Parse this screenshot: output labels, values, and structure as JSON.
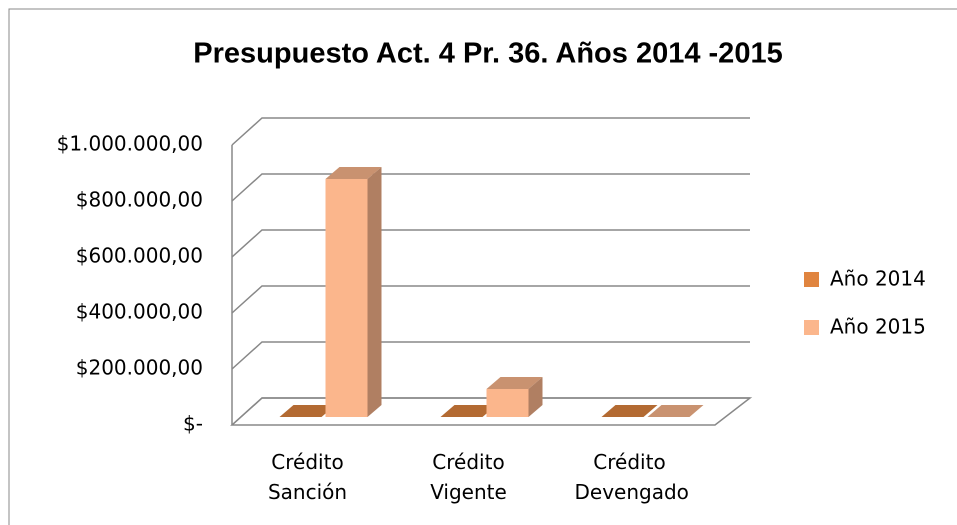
{
  "chart_data": {
    "type": "bar3d",
    "title": "Presupuesto Act. 4 Pr. 36. Años 2014 -2015",
    "categories": [
      "Crédito Sanción",
      "Crédito Vigente",
      "Crédito Devengado"
    ],
    "series": [
      {
        "name": "Año 2014",
        "color": "#e0843f",
        "values": [
          0,
          0,
          0
        ]
      },
      {
        "name": "Año 2015",
        "color": "#fbb68c",
        "values": [
          850000,
          100000,
          0
        ]
      }
    ],
    "ylim": [
      0,
      1000000
    ],
    "yticks": [
      {
        "value": 0,
        "label": "$-"
      },
      {
        "value": 200000,
        "label": "$200.000,00"
      },
      {
        "value": 400000,
        "label": "$400.000,00"
      },
      {
        "value": 600000,
        "label": "$600.000,00"
      },
      {
        "value": 800000,
        "label": "$800.000,00"
      },
      {
        "value": 1000000,
        "label": "$1.000.000,00"
      }
    ],
    "grid": true,
    "legend": "right"
  }
}
